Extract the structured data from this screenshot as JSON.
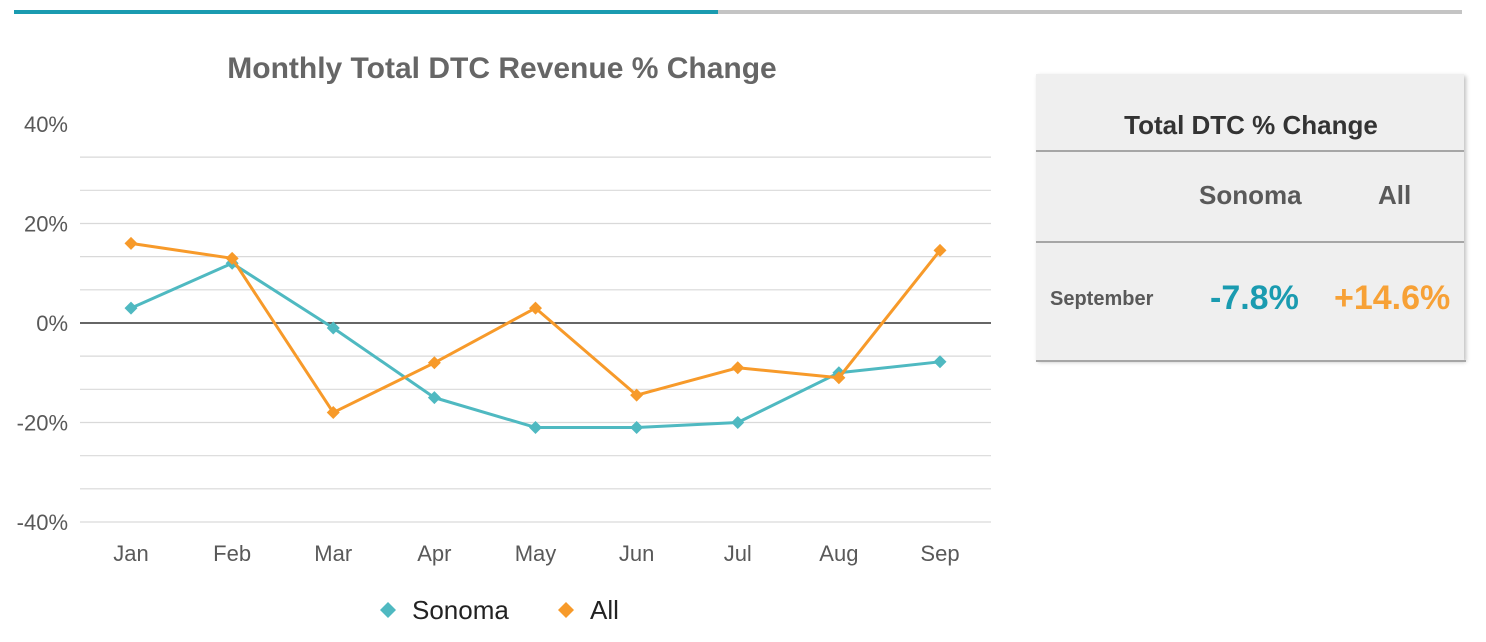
{
  "chart_data": {
    "type": "line",
    "title": "Monthly Total DTC Revenue % Change",
    "categories": [
      "Jan",
      "Feb",
      "Mar",
      "Apr",
      "May",
      "Jun",
      "Jul",
      "Aug",
      "Sep"
    ],
    "series": [
      {
        "name": "Sonoma",
        "color": "#4fb9c1",
        "values": [
          3,
          12,
          -1,
          -15,
          -21,
          -21,
          -20,
          -10,
          -7.8
        ]
      },
      {
        "name": "All",
        "color": "#f79a2a",
        "values": [
          16,
          13,
          -18,
          -8,
          3,
          -14.5,
          -9,
          -11,
          14.6
        ]
      }
    ],
    "ylim": [
      -40,
      40
    ],
    "y_ticks": [
      -40,
      -20,
      0,
      20,
      40
    ],
    "y_tick_labels": [
      "-40%",
      "-20%",
      "0%",
      "20%",
      "40%"
    ],
    "gridline_step": 6.667,
    "xlabel": "",
    "ylabel": "",
    "legend_position": "bottom",
    "marker": "diamond"
  },
  "summary_card": {
    "title": "Total DTC % Change",
    "columns": [
      "Sonoma",
      "All"
    ],
    "row_label": "September",
    "sonoma_value": "-7.8%",
    "all_value": "+14.6%",
    "sonoma_color": "#1a9bb0",
    "all_color": "#f7a136"
  },
  "colors": {
    "accent": "#1a9bb0",
    "divider": "#c4c4c4"
  }
}
